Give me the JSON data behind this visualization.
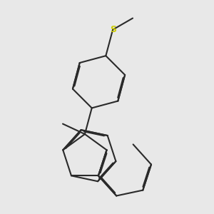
{
  "background_color": "#e8e8e8",
  "bond_color": "#2a2a2a",
  "sulfur_color": "#cccc00",
  "line_width": 1.5,
  "dbo": 0.035,
  "figsize": [
    3.0,
    3.0
  ],
  "dpi": 100
}
